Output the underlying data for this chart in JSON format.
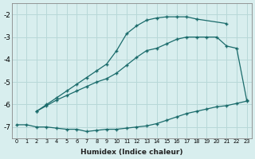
{
  "line1_x": [
    2,
    3,
    4,
    5,
    6,
    7,
    8,
    9,
    10,
    11,
    12,
    13,
    14,
    15,
    16,
    17,
    18,
    21
  ],
  "line1_y": [
    -6.3,
    -6.0,
    -5.7,
    -5.4,
    -5.1,
    -4.8,
    -4.5,
    -4.2,
    -3.6,
    -2.85,
    -2.5,
    -2.25,
    -2.15,
    -2.1,
    -2.1,
    -2.1,
    -2.2,
    -2.4
  ],
  "line2_x": [
    2,
    3,
    4,
    5,
    6,
    7,
    8,
    9,
    10,
    11,
    12,
    13,
    14,
    15,
    16,
    17,
    18,
    19,
    20,
    21,
    22,
    23
  ],
  "line2_y": [
    -6.3,
    -6.05,
    -5.8,
    -5.6,
    -5.4,
    -5.2,
    -5.0,
    -4.85,
    -4.6,
    -4.25,
    -3.9,
    -3.6,
    -3.5,
    -3.3,
    -3.1,
    -3.0,
    -3.0,
    -3.0,
    -3.0,
    -3.4,
    -3.5,
    -5.8
  ],
  "line3_x": [
    0,
    1,
    2,
    3,
    4,
    5,
    6,
    7,
    8,
    9,
    10,
    11,
    12,
    13,
    14,
    15,
    16,
    17,
    18,
    19,
    20,
    21,
    22,
    23
  ],
  "line3_y": [
    -6.9,
    -6.9,
    -7.0,
    -7.0,
    -7.05,
    -7.1,
    -7.1,
    -7.2,
    -7.15,
    -7.1,
    -7.1,
    -7.05,
    -7.0,
    -6.95,
    -6.85,
    -6.7,
    -6.55,
    -6.4,
    -6.3,
    -6.2,
    -6.1,
    -6.05,
    -5.95,
    -5.85
  ],
  "bg_color": "#d8eeee",
  "line_color": "#1a6b6b",
  "grid_color": "#b8d8d8",
  "xlabel": "Humidex (Indice chaleur)",
  "ylim": [
    -7.5,
    -1.5
  ],
  "xlim": [
    -0.5,
    23.5
  ],
  "yticks": [
    -7,
    -6,
    -5,
    -4,
    -3,
    -2
  ],
  "xticks": [
    0,
    1,
    2,
    3,
    4,
    5,
    6,
    7,
    8,
    9,
    10,
    11,
    12,
    13,
    14,
    15,
    16,
    17,
    18,
    19,
    20,
    21,
    22,
    23
  ],
  "xtick_labels": [
    "0",
    "1",
    "2",
    "3",
    "4",
    "5",
    "6",
    "7",
    "8",
    "9",
    "10",
    "11",
    "12",
    "13",
    "14",
    "15",
    "16",
    "17",
    "18",
    "19",
    "20",
    "21",
    "22",
    "23"
  ]
}
